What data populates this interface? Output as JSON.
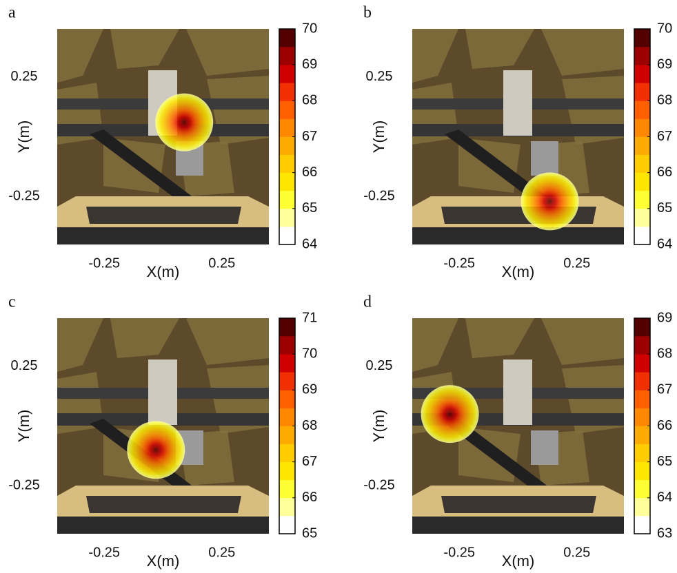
{
  "chart_data": [
    {
      "type": "heatmap",
      "title": "a",
      "xlabel": "X(m)",
      "ylabel": "Y(m)",
      "xlim": [
        -0.45,
        0.45
      ],
      "ylim": [
        -0.45,
        0.45
      ],
      "xticks": [
        -0.25,
        0.25
      ],
      "yticks": [
        -0.25,
        0.25
      ],
      "source": {
        "x": 0.09,
        "y": 0.06
      },
      "clim": [
        64,
        70
      ],
      "cticks": [
        64,
        65,
        66,
        67,
        68,
        69,
        70
      ],
      "colors": [
        "#ffffff",
        "#ffff9a",
        "#ffff33",
        "#ffe600",
        "#ffcc00",
        "#ffaa00",
        "#ff8800",
        "#ff5f00",
        "#f03000",
        "#d00000",
        "#9c0000",
        "#550000"
      ]
    },
    {
      "type": "heatmap",
      "title": "b",
      "xlabel": "X(m)",
      "ylabel": "Y(m)",
      "xlim": [
        -0.45,
        0.45
      ],
      "ylim": [
        -0.45,
        0.45
      ],
      "xticks": [
        -0.25,
        0.25
      ],
      "yticks": [
        -0.25,
        0.25
      ],
      "source": {
        "x": 0.135,
        "y": -0.27
      },
      "clim": [
        64,
        70
      ],
      "cticks": [
        64,
        65,
        66,
        67,
        68,
        69,
        70
      ],
      "colors": [
        "#ffffff",
        "#ffff9a",
        "#ffff33",
        "#ffe600",
        "#ffcc00",
        "#ffaa00",
        "#ff8800",
        "#ff5f00",
        "#f03000",
        "#d00000",
        "#9c0000",
        "#550000"
      ]
    },
    {
      "type": "heatmap",
      "title": "c",
      "xlabel": "X(m)",
      "ylabel": "Y(m)",
      "xlim": [
        -0.45,
        0.45
      ],
      "ylim": [
        -0.45,
        0.45
      ],
      "xticks": [
        -0.25,
        0.25
      ],
      "yticks": [
        -0.25,
        0.25
      ],
      "source": {
        "x": -0.03,
        "y": -0.1
      },
      "clim": [
        65,
        71
      ],
      "cticks": [
        65,
        66,
        67,
        68,
        69,
        70,
        71
      ],
      "colors": [
        "#ffffff",
        "#ffff9a",
        "#ffff33",
        "#ffe600",
        "#ffcc00",
        "#ffaa00",
        "#ff8800",
        "#ff5f00",
        "#f03000",
        "#d00000",
        "#9c0000",
        "#550000"
      ]
    },
    {
      "type": "heatmap",
      "title": "d",
      "xlabel": "X(m)",
      "ylabel": "Y(m)",
      "xlim": [
        -0.45,
        0.45
      ],
      "ylim": [
        -0.45,
        0.45
      ],
      "xticks": [
        -0.25,
        0.25
      ],
      "yticks": [
        -0.25,
        0.25
      ],
      "source": {
        "x": -0.29,
        "y": 0.05
      },
      "clim": [
        63,
        69
      ],
      "cticks": [
        63,
        64,
        65,
        66,
        67,
        68,
        69
      ],
      "colors": [
        "#ffffff",
        "#ffff9a",
        "#ffff33",
        "#ffe600",
        "#ffcc00",
        "#ffaa00",
        "#ff8800",
        "#ff5f00",
        "#f03000",
        "#d00000",
        "#9c0000",
        "#550000"
      ]
    }
  ]
}
